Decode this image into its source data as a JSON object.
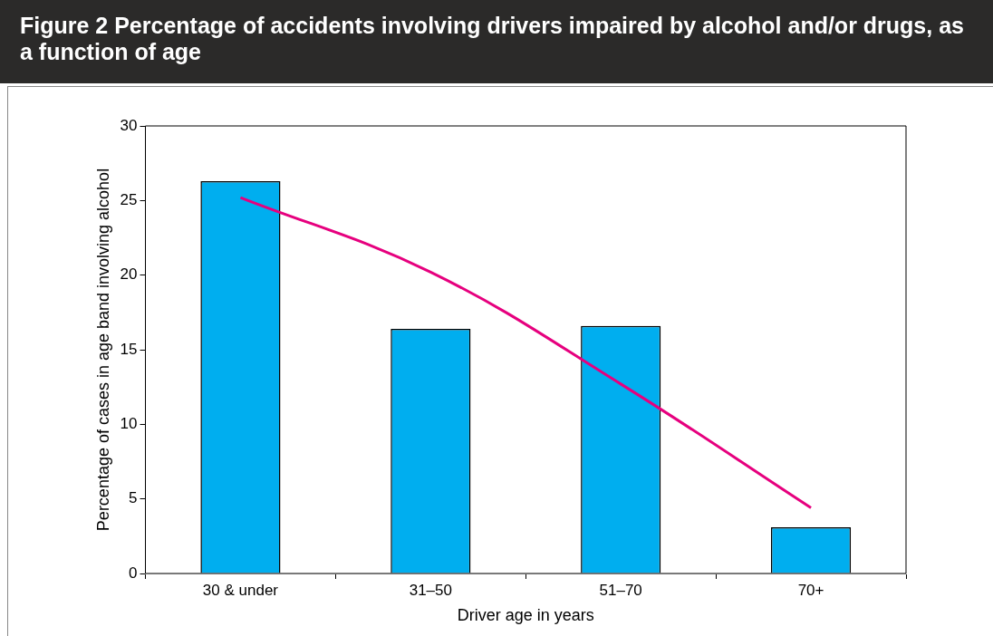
{
  "chart_data": {
    "type": "bar",
    "title": "Figure 2 Percentage of accidents involving drivers impaired by alcohol and/or drugs, as a function of age",
    "xlabel": "Driver age in years",
    "ylabel": "Percentage of cases in age band involving alcohol",
    "categories": [
      "30 & under",
      "31–50",
      "51–70",
      "70+"
    ],
    "series": [
      {
        "color": "#00aeef",
        "values": [
          26.3,
          16.4,
          16.6,
          3.1
        ]
      },
      {
        "type": "line",
        "color": "#e6007e",
        "x": [
          "30 & under",
          "31–50",
          "51–70",
          "70+"
        ],
        "values": [
          25.2,
          20.2,
          12.7,
          4.4
        ]
      }
    ],
    "ylim": [
      0,
      30
    ],
    "yticks": [
      0,
      5,
      10,
      15,
      20,
      25,
      30
    ],
    "grid": false,
    "legend": false,
    "marker": "none"
  }
}
